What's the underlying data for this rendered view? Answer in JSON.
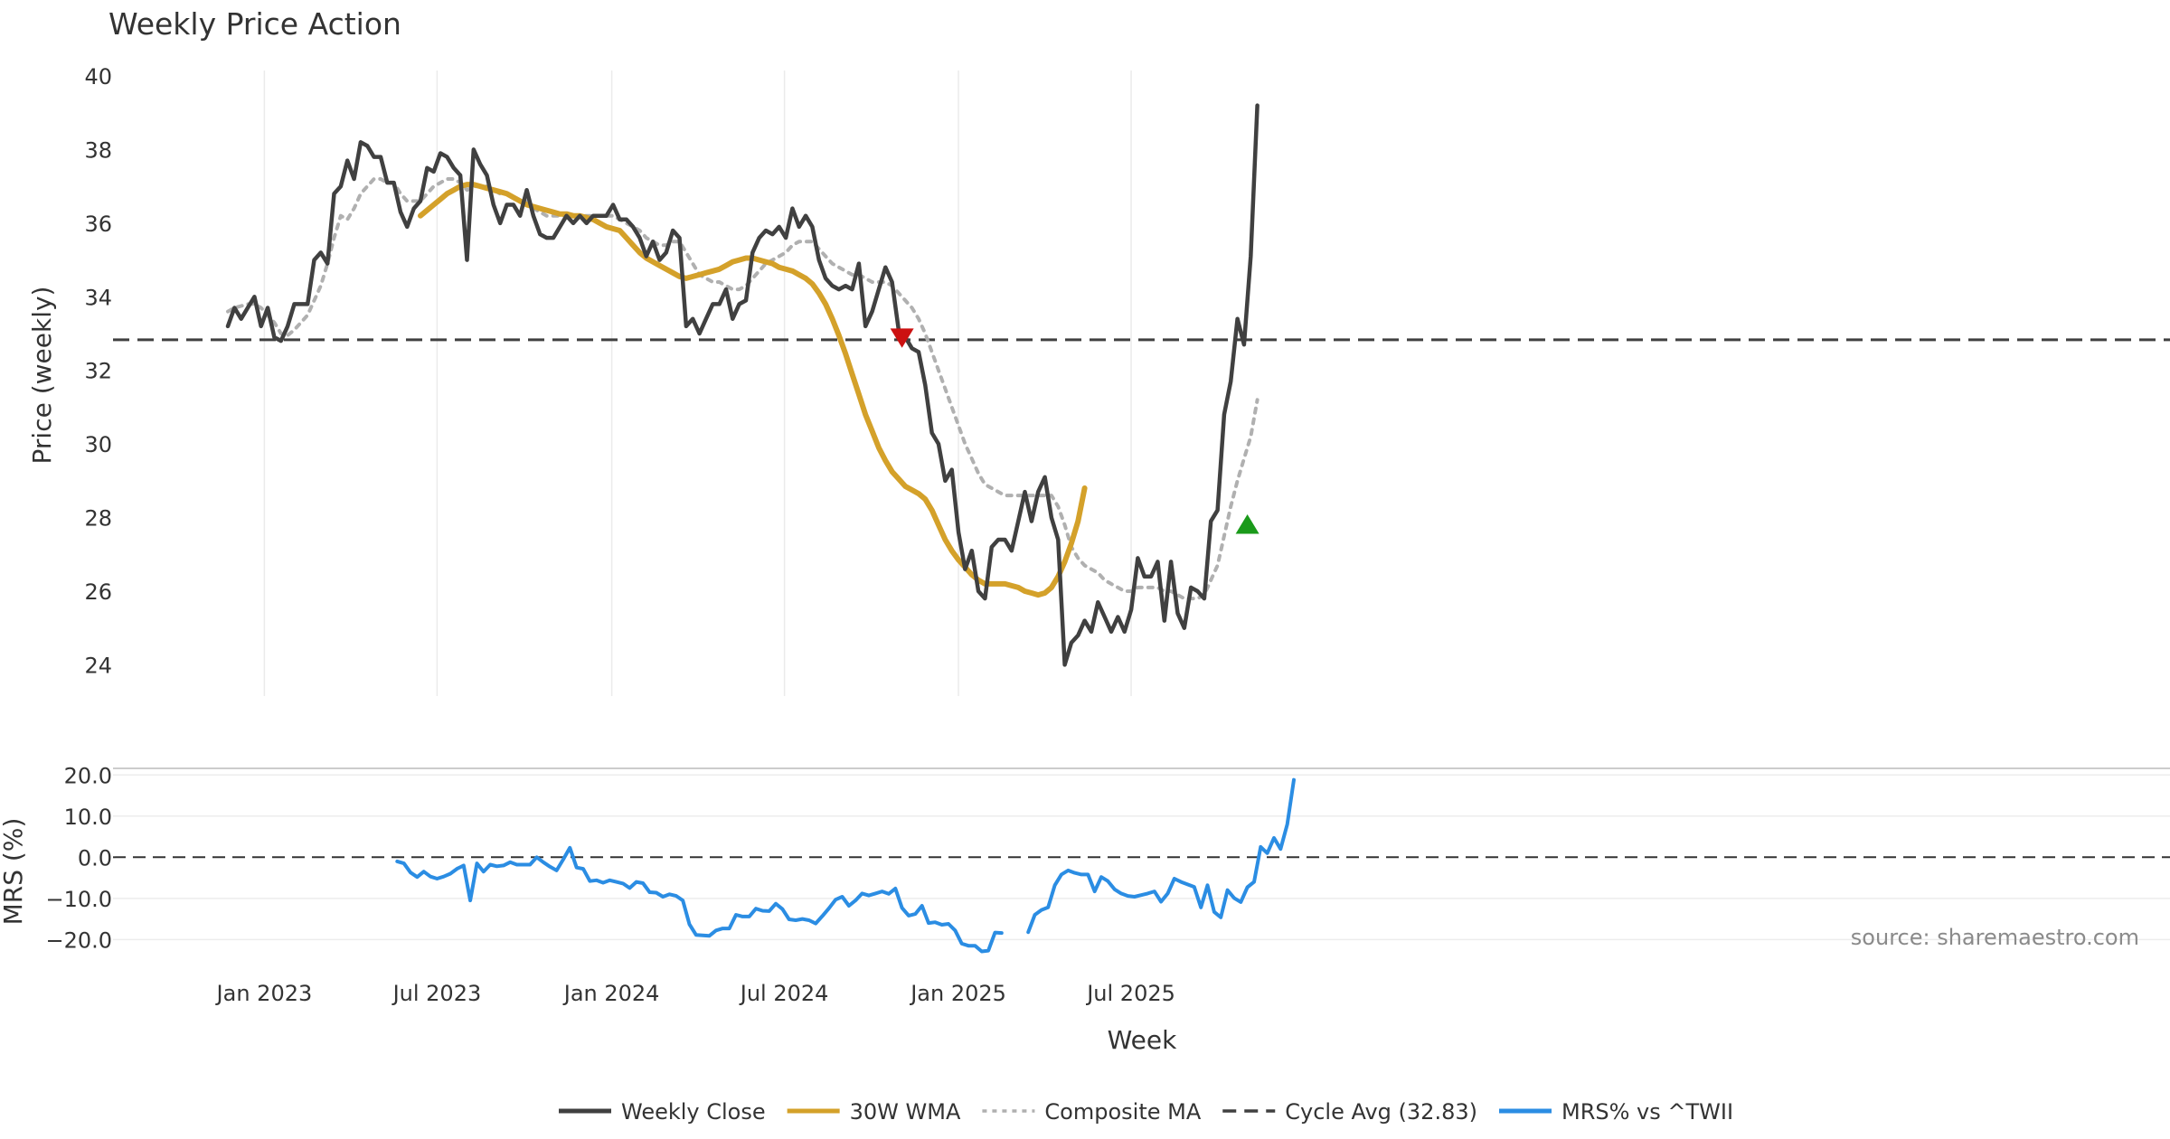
{
  "chart_data": [
    {
      "type": "line",
      "title": "Weekly Price Action",
      "ylabel": "Price (weekly)",
      "xlabel": "Week",
      "ylim": [
        23.2,
        40.0
      ],
      "yticks": [
        24,
        26,
        28,
        30,
        32,
        34,
        36,
        38,
        40
      ],
      "xticks": [
        {
          "label": "Jan 2023",
          "week": 5.5
        },
        {
          "label": "Jul 2023",
          "week": 31.5
        },
        {
          "label": "Jan 2024",
          "week": 57.8
        },
        {
          "label": "Jul 2024",
          "week": 83.8
        },
        {
          "label": "Jan 2025",
          "week": 110
        },
        {
          "label": "Jul 2025",
          "week": 136
        }
      ],
      "reference_line": {
        "name": "Cycle Avg (32.83)",
        "value": 32.83
      },
      "series": [
        {
          "name": "Weekly Close",
          "color": "#404040",
          "start_week": 0,
          "values": [
            33.2,
            33.7,
            33.4,
            33.7,
            34.0,
            33.2,
            33.7,
            32.9,
            32.8,
            33.2,
            33.8,
            33.8,
            33.8,
            35.0,
            35.2,
            34.9,
            36.8,
            37.0,
            37.7,
            37.2,
            38.2,
            38.1,
            37.8,
            37.8,
            37.1,
            37.1,
            36.3,
            35.9,
            36.4,
            36.6,
            37.5,
            37.4,
            37.9,
            37.8,
            37.5,
            37.3,
            35.0,
            38.0,
            37.6,
            37.3,
            36.5,
            36.0,
            36.5,
            36.5,
            36.2,
            36.9,
            36.2,
            35.7,
            35.6,
            35.6,
            35.9,
            36.2,
            36.0,
            36.2,
            36.0,
            36.2,
            36.2,
            36.2,
            36.5,
            36.1,
            36.1,
            35.9,
            35.6,
            35.1,
            35.5,
            35.0,
            35.2,
            35.8,
            35.6,
            33.2,
            33.4,
            33.0,
            33.4,
            33.8,
            33.8,
            34.2,
            33.4,
            33.8,
            33.9,
            35.2,
            35.6,
            35.8,
            35.7,
            35.9,
            35.6,
            36.4,
            35.9,
            36.2,
            35.9,
            35.0,
            34.5,
            34.3,
            34.2,
            34.3,
            34.2,
            34.9,
            33.2,
            33.6,
            34.2,
            34.8,
            34.4,
            33.1,
            32.9,
            32.6,
            32.5,
            31.6,
            30.3,
            30.0,
            29.0,
            29.3,
            27.6,
            26.6,
            27.1,
            26.0,
            25.8,
            27.2,
            27.4,
            27.4,
            27.1,
            27.9,
            28.7,
            27.9,
            28.7,
            29.1,
            28.0,
            27.4,
            24.0,
            24.6,
            24.8,
            25.2,
            24.9,
            25.7,
            25.3,
            24.9,
            25.3,
            24.9,
            25.5,
            26.9,
            26.4,
            26.4,
            26.8,
            25.2,
            26.8,
            25.4,
            25.0,
            26.1,
            26.0,
            25.8,
            27.9,
            28.2,
            30.8,
            31.7,
            33.4,
            32.7,
            35.1,
            39.2
          ]
        },
        {
          "name": "30W WMA",
          "color": "#d4a12a",
          "start_week": 29,
          "values": [
            36.2,
            36.35,
            36.5,
            36.65,
            36.8,
            36.9,
            37.0,
            37.05,
            37.05,
            37.0,
            36.95,
            36.9,
            36.85,
            36.8,
            36.7,
            36.6,
            36.5,
            36.45,
            36.4,
            36.35,
            36.3,
            36.25,
            36.25,
            36.2,
            36.2,
            36.15,
            36.1,
            36.0,
            35.9,
            35.85,
            35.8,
            35.6,
            35.4,
            35.2,
            35.05,
            34.95,
            34.85,
            34.75,
            34.65,
            34.55,
            34.5,
            34.55,
            34.6,
            34.65,
            34.7,
            34.75,
            34.85,
            34.95,
            35.0,
            35.05,
            35.05,
            35.0,
            34.95,
            34.9,
            34.8,
            34.75,
            34.7,
            34.6,
            34.5,
            34.35,
            34.1,
            33.8,
            33.4,
            32.95,
            32.45,
            31.9,
            31.35,
            30.8,
            30.35,
            29.9,
            29.55,
            29.25,
            29.05,
            28.85,
            28.75,
            28.65,
            28.5,
            28.2,
            27.8,
            27.4,
            27.1,
            26.85,
            26.65,
            26.45,
            26.3,
            26.2,
            26.2,
            26.2,
            26.2,
            26.15,
            26.1,
            26.0,
            25.95,
            25.9,
            25.95,
            26.1,
            26.4,
            26.8,
            27.3,
            27.9,
            28.8
          ]
        },
        {
          "name": "Composite MA",
          "color": "#b0b0b0",
          "start_week": 0,
          "values": [
            33.6,
            33.7,
            33.75,
            33.8,
            33.8,
            33.7,
            33.5,
            33.3,
            33.0,
            32.95,
            33.1,
            33.3,
            33.5,
            33.9,
            34.3,
            34.9,
            35.6,
            36.2,
            36.1,
            36.4,
            36.8,
            37.0,
            37.2,
            37.2,
            37.1,
            37.1,
            36.8,
            36.6,
            36.6,
            36.6,
            36.8,
            37.0,
            37.1,
            37.2,
            37.2,
            37.1,
            36.9,
            37.0,
            37.0,
            37.0,
            36.9,
            36.8,
            36.8,
            36.7,
            36.6,
            36.6,
            36.4,
            36.3,
            36.2,
            36.2,
            36.2,
            36.2,
            36.2,
            36.2,
            36.2,
            36.2,
            36.2,
            36.2,
            36.2,
            36.1,
            36.0,
            35.9,
            35.8,
            35.6,
            35.5,
            35.4,
            35.4,
            35.5,
            35.5,
            35.2,
            34.9,
            34.6,
            34.5,
            34.4,
            34.4,
            34.3,
            34.2,
            34.2,
            34.3,
            34.5,
            34.7,
            34.9,
            35.0,
            35.1,
            35.2,
            35.4,
            35.5,
            35.5,
            35.5,
            35.3,
            35.1,
            34.9,
            34.8,
            34.7,
            34.6,
            34.6,
            34.5,
            34.4,
            34.4,
            34.4,
            34.3,
            34.1,
            33.9,
            33.7,
            33.4,
            33.0,
            32.5,
            32.0,
            31.5,
            31.0,
            30.5,
            30.0,
            29.6,
            29.2,
            28.9,
            28.8,
            28.7,
            28.6,
            28.6,
            28.6,
            28.6,
            28.6,
            28.6,
            28.6,
            28.6,
            28.3,
            27.8,
            27.2,
            26.9,
            26.7,
            26.6,
            26.5,
            26.3,
            26.2,
            26.1,
            26.0,
            26.0,
            26.1,
            26.1,
            26.1,
            26.1,
            26.0,
            26.0,
            25.9,
            25.8,
            25.8,
            25.8,
            25.9,
            26.3,
            26.7,
            27.5,
            28.3,
            29.0,
            29.6,
            30.2,
            31.2
          ]
        }
      ],
      "markers": [
        {
          "name": "sell-signal",
          "shape": "triangle-down",
          "color": "#cc1111",
          "week": 101.5,
          "value": 32.9
        },
        {
          "name": "buy-signal",
          "shape": "triangle-up",
          "color": "#1a9a1a",
          "week": 153.5,
          "value": 27.8
        }
      ]
    },
    {
      "type": "line",
      "ylabel": "MRS (%)",
      "xlabel": "Week",
      "ylim": [
        -23.0,
        20.5
      ],
      "yticks": [
        {
          "value": 20,
          "label": "20.0"
        },
        {
          "value": 10,
          "label": "10.0"
        },
        {
          "value": 0,
          "label": "0.0"
        },
        {
          "value": -10,
          "label": "−10.0"
        },
        {
          "value": -20,
          "label": "−20.0"
        }
      ],
      "reference_line": {
        "value": 0
      },
      "series": [
        {
          "name": "MRS% vs ^TWII",
          "color": "#2b8de3",
          "start_week": 25.5,
          "values": [
            -1.0,
            -1.5,
            -3.7,
            -4.8,
            -3.5,
            -4.7,
            -5.2,
            -4.7,
            -4.0,
            -2.8,
            -2.0,
            -10.5,
            -1.5,
            -3.5,
            -1.8,
            -2.2,
            -2.0,
            -1.2,
            -1.8,
            -1.8,
            -1.8,
            0.0,
            -1.2,
            -2.3,
            -3.2,
            -0.5,
            2.3,
            -2.5,
            -2.8,
            -5.8,
            -5.6,
            -6.2,
            -5.6,
            -6.0,
            -6.4,
            -7.5,
            -6.0,
            -6.3,
            -8.5,
            -8.6,
            -9.6,
            -9.0,
            -9.4,
            -10.5,
            -16.3,
            -18.9,
            -19.0,
            -19.1,
            -17.8,
            -17.3,
            -17.3,
            -14.0,
            -14.4,
            -14.4,
            -12.5,
            -13.0,
            -13.1,
            -11.3,
            -12.6,
            -15.1,
            -15.3,
            -15.0,
            -15.3,
            -16.1,
            -14.3,
            -12.4,
            -10.3,
            -9.6,
            -11.8,
            -10.5,
            -8.8,
            -9.3,
            -8.8,
            -8.3,
            -8.9,
            -7.6,
            -12.3,
            -14.2,
            -13.8,
            -11.8,
            -16.0,
            -15.8,
            -16.4,
            -16.2,
            -17.8,
            -21.0,
            -21.5,
            -21.5,
            -22.9,
            -22.7,
            -18.3,
            -18.4,
            null,
            null,
            null,
            -18.2,
            -14.0,
            -12.8,
            -12.2,
            -6.8,
            -4.2,
            -3.2,
            -3.8,
            -4.2,
            -4.2,
            -8.3,
            -4.8,
            -5.8,
            -7.8,
            -8.8,
            -9.4,
            -9.6,
            -9.2,
            -8.8,
            -8.3,
            -10.8,
            -8.8,
            -5.2,
            -6.0,
            -6.6,
            -7.2,
            -12.2,
            -6.8,
            -13.3,
            -14.6,
            -8.0,
            -9.9,
            -10.9,
            -7.3,
            -6.0,
            2.5,
            1.0,
            4.7,
            2.0,
            8.0,
            18.8
          ]
        }
      ],
      "annotation": "source: sharemaestro.com"
    }
  ],
  "legend": [
    {
      "label": "Weekly Close",
      "style": "solid",
      "color": "#404040"
    },
    {
      "label": "30W WMA",
      "style": "solid",
      "color": "#d4a12a"
    },
    {
      "label": "Composite MA",
      "style": "dotted",
      "color": "#b0b0b0"
    },
    {
      "label": "Cycle Avg (32.83)",
      "style": "dashed",
      "color": "#404040"
    },
    {
      "label": "MRS% vs ^TWII",
      "style": "solid",
      "color": "#2b8de3"
    }
  ]
}
